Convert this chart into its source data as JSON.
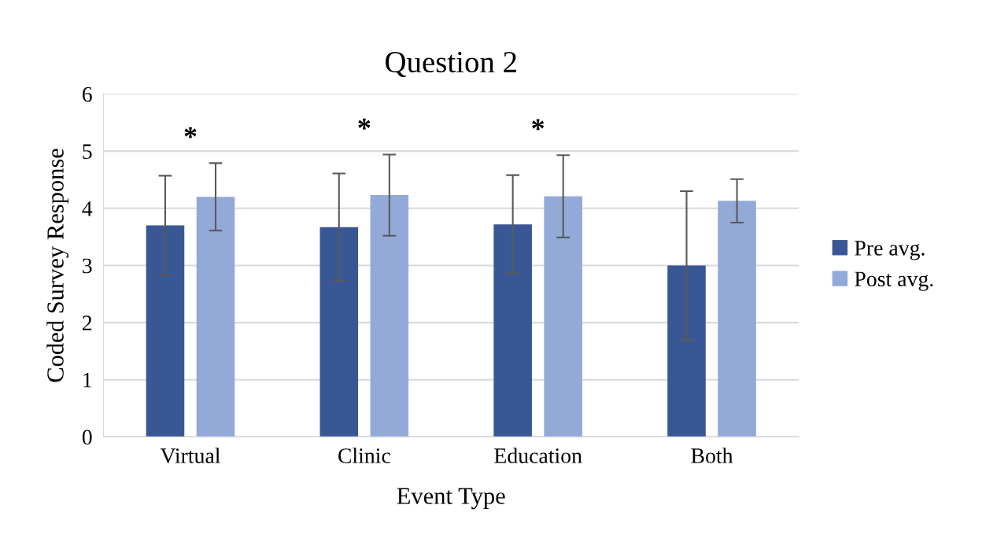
{
  "chart_data": {
    "type": "bar",
    "title": "Question 2",
    "xlabel": "Event Type",
    "ylabel": "Coded Survey Response",
    "categories": [
      "Virtual",
      "Clinic",
      "Education",
      "Both"
    ],
    "series": [
      {
        "name": "Pre avg.",
        "color": "#3a5795",
        "values": [
          3.7,
          3.67,
          3.72,
          3.0
        ],
        "errors": [
          0.87,
          0.94,
          0.86,
          1.3
        ]
      },
      {
        "name": "Post avg.",
        "color": "#93a9d8",
        "values": [
          4.2,
          4.23,
          4.21,
          4.13
        ],
        "errors": [
          0.59,
          0.71,
          0.72,
          0.38
        ]
      }
    ],
    "annotations": [
      "*",
      "*",
      "*"
    ],
    "ylim": [
      0,
      6
    ],
    "yticks": [
      0,
      1,
      2,
      3,
      4,
      5,
      6
    ],
    "grid": "y",
    "legend": "right"
  }
}
